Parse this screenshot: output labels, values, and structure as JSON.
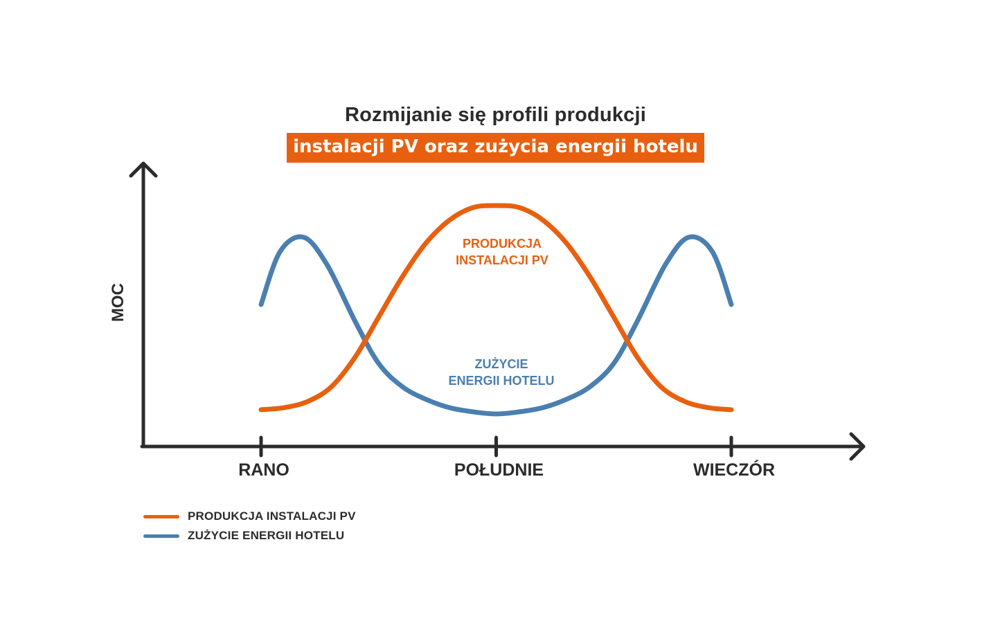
{
  "title": {
    "line1": "Rozmijanie się profili produkcji",
    "line2": "instalacji PV oraz zużycia energii hotelu"
  },
  "colors": {
    "pv": "#e8600f",
    "hotel": "#4a7fb0",
    "axis": "#2b2b2b"
  },
  "chart_data": {
    "type": "line",
    "title": "Rozmijanie się profili produkcji instalacji PV oraz zużycia energii hotelu",
    "xlabel": "",
    "ylabel": "MOC",
    "x_ticks": [
      "RANO",
      "POŁUDNIE",
      "WIECZÓR"
    ],
    "xlim": [
      0,
      1
    ],
    "ylim": [
      0,
      1
    ],
    "grid": false,
    "legend_placement": "bottom-left",
    "series": [
      {
        "name": "PRODUKCJA INSTALACJI PV",
        "annotation": [
          "PRODUKCJA",
          "INSTALACJI PV"
        ],
        "color": "#e8600f",
        "x": [
          0.0,
          0.05,
          0.1,
          0.15,
          0.2,
          0.25,
          0.3,
          0.35,
          0.4,
          0.45,
          0.5,
          0.55,
          0.6,
          0.65,
          0.7,
          0.75,
          0.8,
          0.85,
          0.9,
          0.95,
          1.0
        ],
        "y": [
          0.03,
          0.04,
          0.07,
          0.14,
          0.28,
          0.47,
          0.66,
          0.82,
          0.93,
          0.99,
          1.0,
          0.99,
          0.93,
          0.82,
          0.66,
          0.47,
          0.28,
          0.14,
          0.07,
          0.04,
          0.03
        ]
      },
      {
        "name": "ZUŻYCIE ENERGII HOTELU",
        "annotation": [
          "ZUŻYCIE",
          "ENERGII HOTELU"
        ],
        "color": "#4a7fb0",
        "x": [
          0.0,
          0.04,
          0.09,
          0.14,
          0.2,
          0.25,
          0.3,
          0.35,
          0.4,
          0.45,
          0.5,
          0.55,
          0.6,
          0.65,
          0.7,
          0.75,
          0.8,
          0.86,
          0.91,
          0.96,
          1.0
        ],
        "y": [
          0.53,
          0.78,
          0.85,
          0.72,
          0.45,
          0.25,
          0.14,
          0.08,
          0.04,
          0.02,
          0.01,
          0.02,
          0.04,
          0.08,
          0.14,
          0.25,
          0.45,
          0.72,
          0.85,
          0.78,
          0.53
        ]
      }
    ]
  }
}
